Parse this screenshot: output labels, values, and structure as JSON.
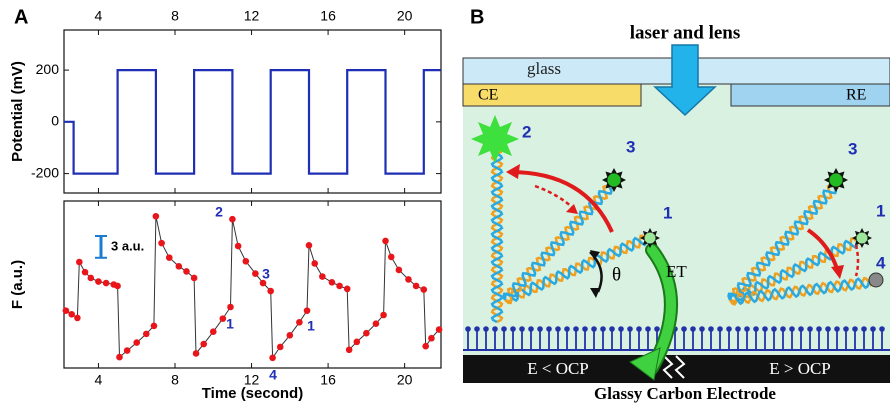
{
  "panels": {
    "a": "A",
    "b": "B"
  },
  "chart_data": [
    {
      "type": "line",
      "y_label": "Potential (mV)",
      "color": "#1f2fb5",
      "x": [
        2.2,
        2.7,
        2.7,
        5,
        5,
        7,
        7,
        9,
        9,
        11,
        11,
        13,
        13,
        15,
        15,
        17,
        17,
        19,
        19,
        21,
        21,
        21.9
      ],
      "values": [
        0,
        0,
        -200,
        -200,
        200,
        200,
        -200,
        -200,
        200,
        200,
        -200,
        -200,
        200,
        200,
        -200,
        -200,
        200,
        200,
        -200,
        -200,
        200,
        200
      ],
      "xlim": [
        2.2,
        21.9
      ],
      "xticks": [
        4,
        8,
        12,
        16,
        20
      ],
      "ylim": [
        -275,
        355
      ],
      "yticks": [
        -200,
        0,
        200
      ]
    },
    {
      "type": "line",
      "markers": true,
      "y_label": "F (a.u.)",
      "x_label": "Time (second)",
      "color": "#e8151b",
      "line_color": "#333333",
      "x": [
        2.3,
        2.6,
        2.9,
        3.0,
        3.3,
        3.6,
        4.0,
        4.4,
        4.8,
        5.0,
        5.1,
        5.5,
        6.0,
        6.5,
        6.9,
        7.0,
        7.3,
        7.7,
        8.2,
        8.6,
        9.0,
        9.1,
        9.5,
        10.0,
        10.5,
        10.9,
        11.0,
        11.3,
        11.7,
        12.2,
        12.6,
        13.0,
        13.1,
        13.5,
        14.0,
        14.5,
        14.9,
        15.0,
        15.3,
        15.7,
        16.2,
        16.6,
        17.0,
        17.1,
        17.5,
        18.0,
        18.5,
        18.9,
        19.0,
        19.3,
        19.7,
        20.2,
        20.6,
        21.0,
        21.1,
        21.4,
        21.8
      ],
      "values": [
        7.9,
        7.4,
        6.9,
        14.6,
        13.2,
        12.4,
        11.9,
        11.7,
        11.5,
        11.3,
        1.5,
        2.4,
        3.5,
        4.7,
        5.8,
        20.9,
        17.2,
        15.2,
        14.0,
        13.3,
        12.4,
        2.0,
        3.3,
        5.0,
        6.8,
        8.4,
        20.5,
        16.8,
        14.7,
        13.0,
        11.7,
        10.6,
        1.4,
        2.9,
        4.5,
        6.3,
        7.9,
        16.9,
        14.4,
        12.6,
        11.8,
        11.3,
        10.9,
        2.5,
        3.6,
        4.8,
        6.1,
        7.3,
        17.5,
        15.3,
        13.5,
        12.2,
        11.3,
        10.8,
        3.0,
        4.1,
        5.3
      ],
      "xlim": [
        2.2,
        21.9
      ],
      "xticks": [
        4,
        8,
        12,
        16,
        20
      ],
      "ylim": [
        0,
        23
      ],
      "annotations": [
        "2",
        "3",
        "1",
        "4",
        "1"
      ],
      "scale_bar": {
        "value": 3,
        "label": "3 a.u."
      }
    }
  ],
  "diagram": {
    "title": "laser and lens",
    "glass": "glass",
    "ce": "CE",
    "re": "RE",
    "labels": [
      "2",
      "3",
      "1",
      "3",
      "1",
      "4"
    ],
    "et": "ET",
    "theta": "θ",
    "left_potential": "E < OCP",
    "right_potential": "E > OCP",
    "electrode": "Glassy Carbon Electrode"
  }
}
